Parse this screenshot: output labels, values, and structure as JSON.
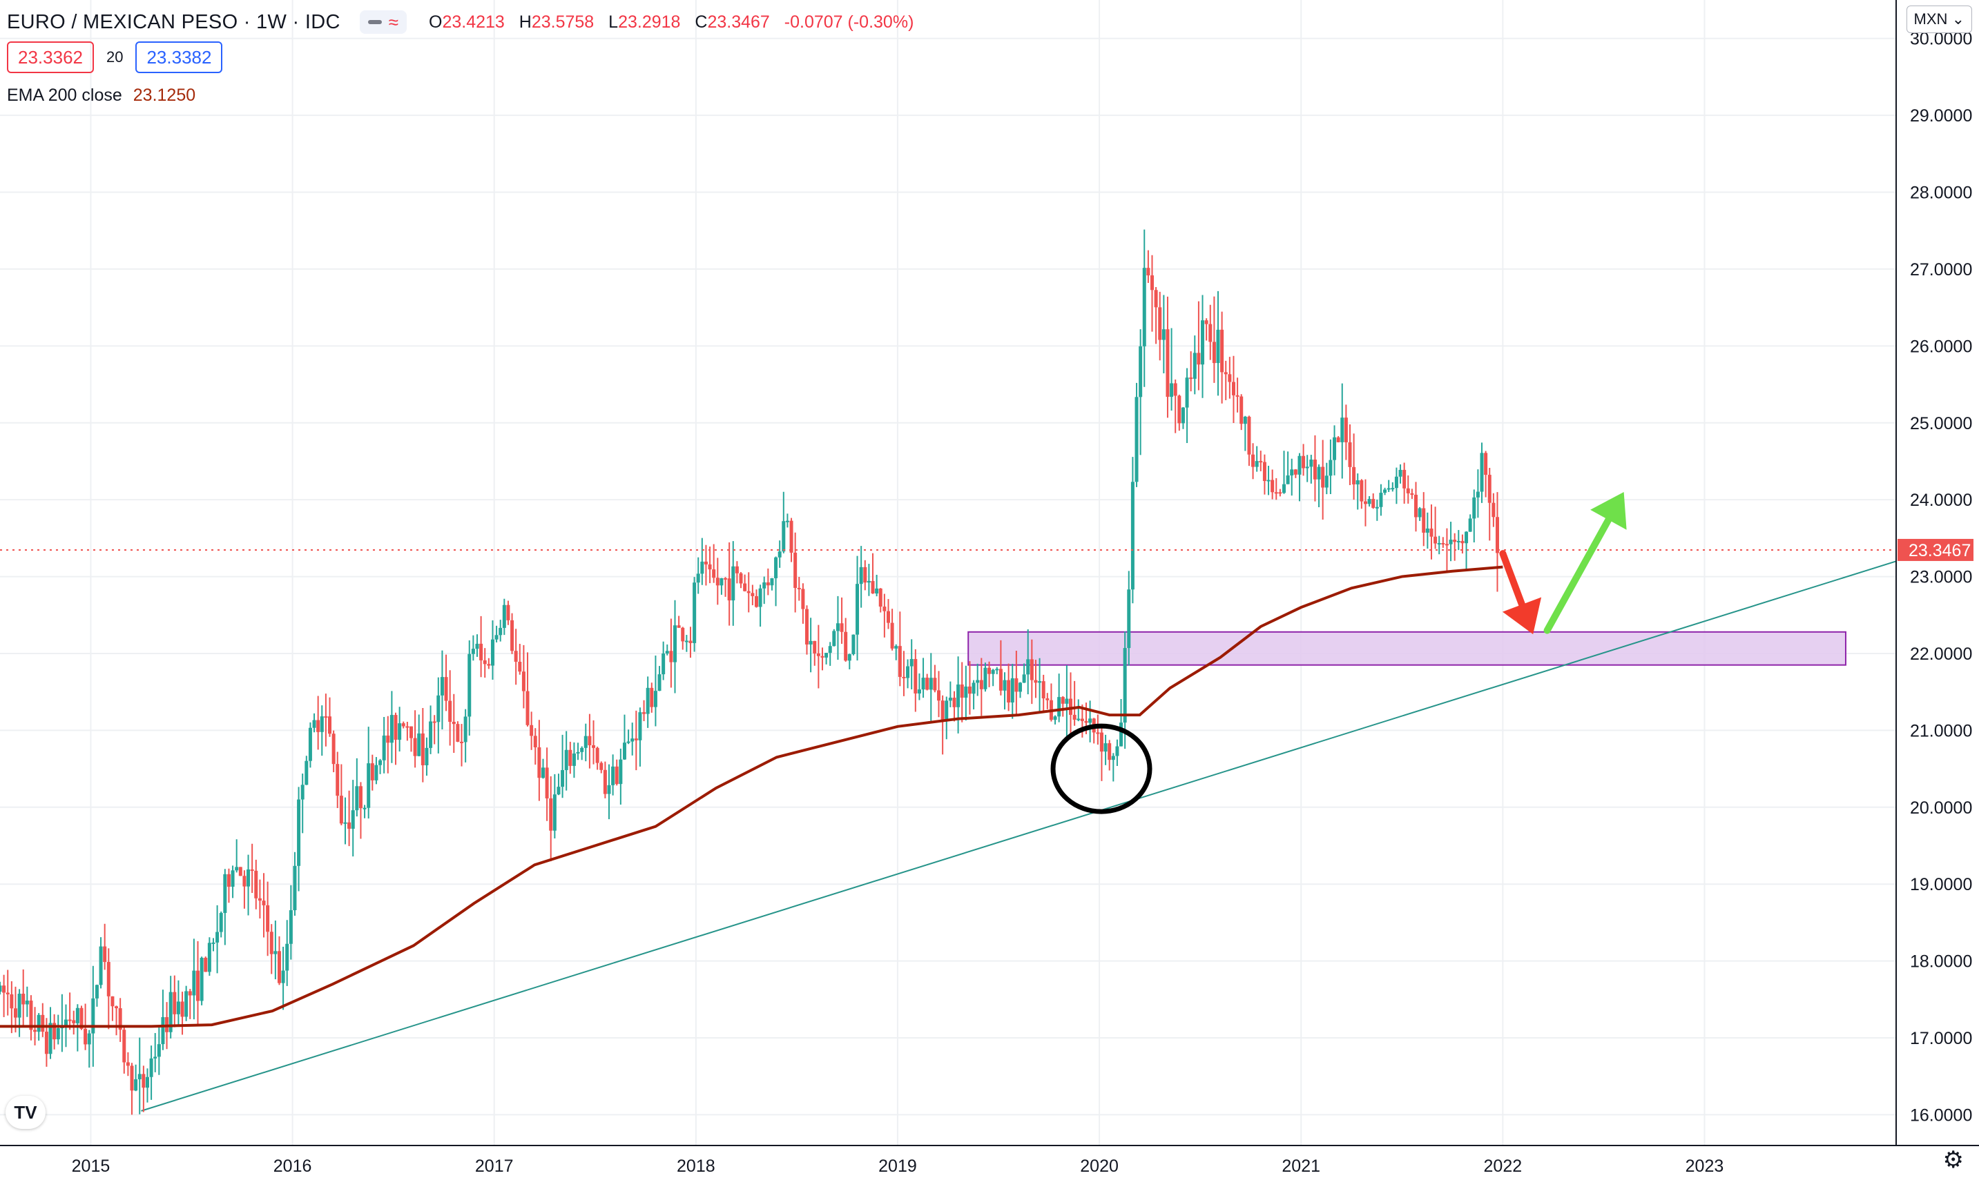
{
  "header": {
    "symbol_title": "EURO / MEXICAN PESO · 1W · IDC",
    "ohlc": [
      {
        "key": "O",
        "value": "23.4213"
      },
      {
        "key": "H",
        "value": "23.5758"
      },
      {
        "key": "L",
        "value": "23.2918"
      },
      {
        "key": "C",
        "value": "23.3467"
      },
      {
        "key": "",
        "value": "-0.0707 (-0.30%)"
      }
    ],
    "bid": "23.3362",
    "spread": "20",
    "ask": "23.3382",
    "indicator_label": "EMA 200 close",
    "indicator_value": "23.1250",
    "currency_button": "MXN"
  },
  "colors": {
    "up": "#26a69a",
    "down": "#ef5350",
    "ema": "#9c1b00",
    "trendline": "#26948a",
    "zone_fill": "#e2c8ee",
    "zone_border": "#8e24aa",
    "arrow_down": "#f23b2b",
    "arrow_up": "#6fe04a",
    "price_tag": "#ef5350"
  },
  "chart_data": {
    "type": "candlestick",
    "timeframe": "1W",
    "x_ticks": [
      "2015",
      "2016",
      "2017",
      "2018",
      "2019",
      "2020",
      "2021",
      "2022",
      "2023"
    ],
    "y_ticks": [
      "16.0000",
      "17.0000",
      "18.0000",
      "19.0000",
      "20.0000",
      "21.0000",
      "22.0000",
      "23.0000",
      "24.0000",
      "25.0000",
      "26.0000",
      "27.0000",
      "28.0000",
      "29.0000",
      "30.0000"
    ],
    "y_range": [
      15.6,
      30.5
    ],
    "x_range": [
      2014.55,
      2023.95
    ],
    "last_price": "23.3467",
    "price_path": [
      [
        2014.55,
        17.6
      ],
      [
        2014.62,
        17.5
      ],
      [
        2014.7,
        17.2
      ],
      [
        2014.8,
        17.0
      ],
      [
        2014.9,
        17.3
      ],
      [
        2015.0,
        17.0
      ],
      [
        2015.05,
        18.3
      ],
      [
        2015.1,
        17.5
      ],
      [
        2015.18,
        16.6
      ],
      [
        2015.25,
        16.3
      ],
      [
        2015.3,
        16.7
      ],
      [
        2015.4,
        17.4
      ],
      [
        2015.5,
        17.6
      ],
      [
        2015.6,
        18.1
      ],
      [
        2015.7,
        19.3
      ],
      [
        2015.8,
        19.0
      ],
      [
        2015.9,
        18.2
      ],
      [
        2015.95,
        17.6
      ],
      [
        2016.0,
        19.0
      ],
      [
        2016.05,
        20.5
      ],
      [
        2016.15,
        21.4
      ],
      [
        2016.25,
        19.8
      ],
      [
        2016.35,
        20.2
      ],
      [
        2016.45,
        20.8
      ],
      [
        2016.55,
        21.2
      ],
      [
        2016.65,
        20.7
      ],
      [
        2016.75,
        21.6
      ],
      [
        2016.85,
        20.6
      ],
      [
        2016.88,
        22.2
      ],
      [
        2016.95,
        21.8
      ],
      [
        2017.05,
        22.6
      ],
      [
        2017.12,
        21.7
      ],
      [
        2017.2,
        20.8
      ],
      [
        2017.28,
        19.9
      ],
      [
        2017.35,
        20.5
      ],
      [
        2017.45,
        20.9
      ],
      [
        2017.55,
        20.3
      ],
      [
        2017.62,
        20.6
      ],
      [
        2017.7,
        21.0
      ],
      [
        2017.8,
        21.6
      ],
      [
        2017.9,
        22.3
      ],
      [
        2017.98,
        22.2
      ],
      [
        2018.0,
        23.1
      ],
      [
        2018.1,
        22.9
      ],
      [
        2018.2,
        23.0
      ],
      [
        2018.3,
        22.7
      ],
      [
        2018.4,
        23.2
      ],
      [
        2018.45,
        23.9
      ],
      [
        2018.5,
        22.9
      ],
      [
        2018.55,
        22.2
      ],
      [
        2018.62,
        21.8
      ],
      [
        2018.7,
        22.4
      ],
      [
        2018.75,
        21.9
      ],
      [
        2018.82,
        23.0
      ],
      [
        2018.9,
        22.8
      ],
      [
        2018.98,
        22.1
      ],
      [
        2019.05,
        21.8
      ],
      [
        2019.15,
        21.6
      ],
      [
        2019.25,
        21.3
      ],
      [
        2019.35,
        21.6
      ],
      [
        2019.45,
        21.8
      ],
      [
        2019.55,
        21.5
      ],
      [
        2019.65,
        21.7
      ],
      [
        2019.75,
        21.3
      ],
      [
        2019.85,
        21.4
      ],
      [
        2019.92,
        21.1
      ],
      [
        2020.0,
        21.0
      ],
      [
        2020.08,
        20.5
      ],
      [
        2020.12,
        21.4
      ],
      [
        2020.16,
        24.0
      ],
      [
        2020.2,
        26.2
      ],
      [
        2020.24,
        27.1
      ],
      [
        2020.28,
        26.2
      ],
      [
        2020.33,
        25.7
      ],
      [
        2020.4,
        24.8
      ],
      [
        2020.45,
        25.9
      ],
      [
        2020.55,
        26.2
      ],
      [
        2020.65,
        25.6
      ],
      [
        2020.72,
        24.9
      ],
      [
        2020.8,
        24.4
      ],
      [
        2020.88,
        24.0
      ],
      [
        2020.95,
        24.3
      ],
      [
        2021.05,
        24.6
      ],
      [
        2021.12,
        24.2
      ],
      [
        2021.2,
        24.9
      ],
      [
        2021.28,
        24.2
      ],
      [
        2021.35,
        23.9
      ],
      [
        2021.42,
        24.1
      ],
      [
        2021.5,
        24.3
      ],
      [
        2021.58,
        23.8
      ],
      [
        2021.65,
        23.4
      ],
      [
        2021.72,
        23.6
      ],
      [
        2021.8,
        23.5
      ],
      [
        2021.85,
        23.8
      ],
      [
        2021.9,
        24.6
      ],
      [
        2021.93,
        23.8
      ],
      [
        2021.98,
        23.35
      ]
    ],
    "ema200": [
      [
        2014.55,
        17.15
      ],
      [
        2015.0,
        17.15
      ],
      [
        2015.3,
        17.15
      ],
      [
        2015.6,
        17.17
      ],
      [
        2015.9,
        17.35
      ],
      [
        2016.2,
        17.7
      ],
      [
        2016.6,
        18.2
      ],
      [
        2016.9,
        18.75
      ],
      [
        2017.2,
        19.25
      ],
      [
        2017.5,
        19.5
      ],
      [
        2017.8,
        19.75
      ],
      [
        2018.1,
        20.25
      ],
      [
        2018.4,
        20.65
      ],
      [
        2018.7,
        20.85
      ],
      [
        2019.0,
        21.05
      ],
      [
        2019.3,
        21.15
      ],
      [
        2019.6,
        21.2
      ],
      [
        2019.9,
        21.3
      ],
      [
        2020.05,
        21.2
      ],
      [
        2020.2,
        21.2
      ],
      [
        2020.35,
        21.55
      ],
      [
        2020.6,
        21.95
      ],
      [
        2020.8,
        22.35
      ],
      [
        2021.0,
        22.6
      ],
      [
        2021.25,
        22.85
      ],
      [
        2021.5,
        23.0
      ],
      [
        2021.75,
        23.07
      ],
      [
        2022.0,
        23.125
      ]
    ],
    "trendline": [
      [
        2015.25,
        16.05
      ],
      [
        2023.95,
        23.2
      ]
    ],
    "support_zone": {
      "x0": 2019.35,
      "x1": 2023.7,
      "y0": 21.85,
      "y1": 22.28
    },
    "annotations": {
      "circle": {
        "x": 2020.01,
        "y": 20.5
      },
      "arrow_down": {
        "from": [
          2022.0,
          23.3
        ],
        "to": [
          2022.15,
          22.25
        ]
      },
      "arrow_up": {
        "from": [
          2022.22,
          22.3
        ],
        "to": [
          2022.6,
          24.1
        ]
      }
    }
  }
}
